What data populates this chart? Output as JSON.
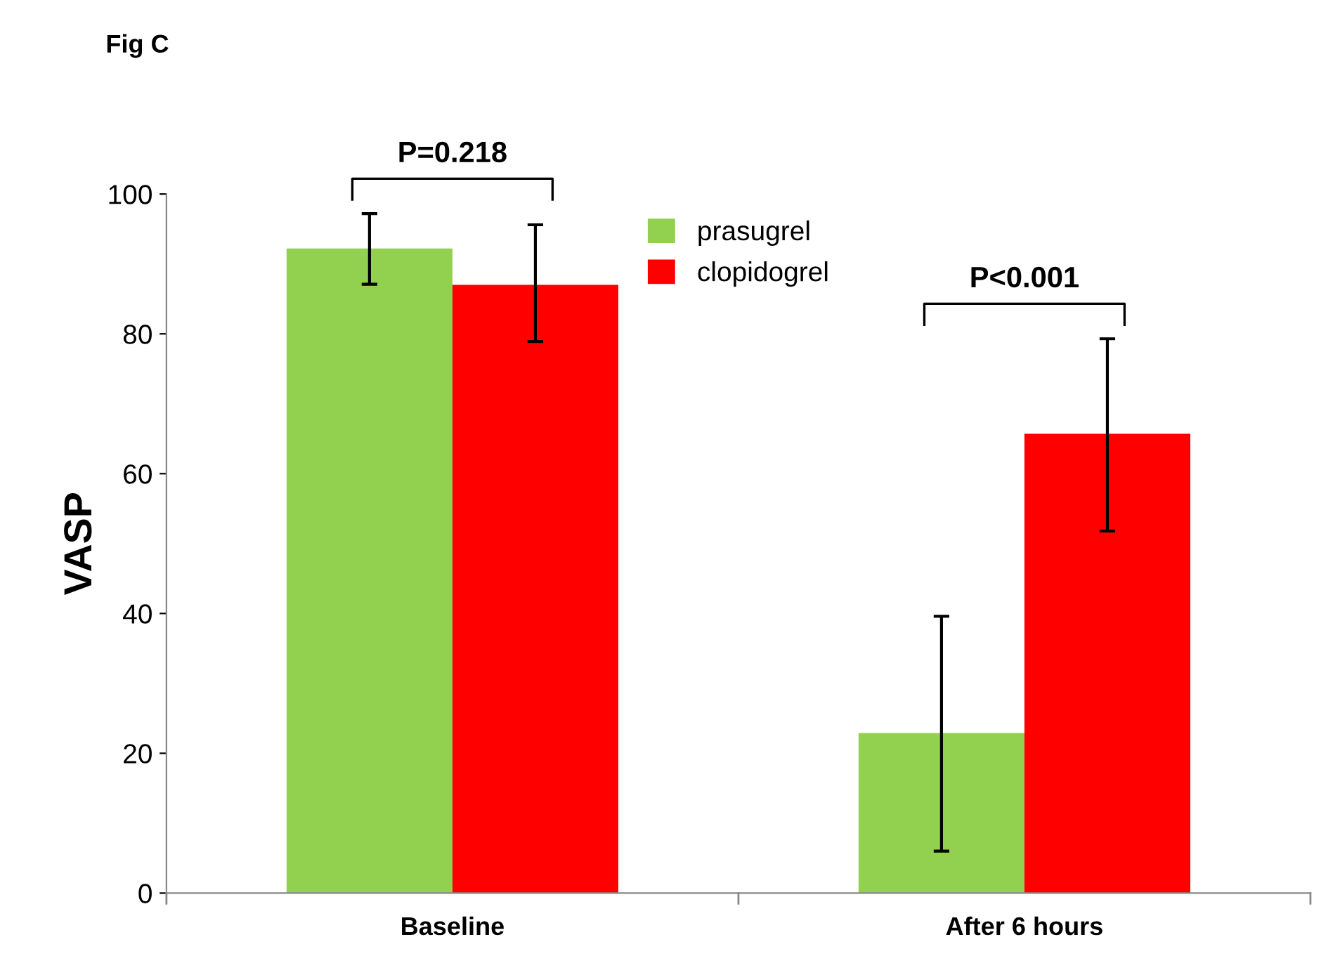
{
  "chart_data": {
    "type": "bar",
    "title": "Fig C",
    "ylabel": "VASP",
    "categories": [
      "Baseline",
      "After 6 hours"
    ],
    "series": [
      {
        "name": "prasugrel",
        "color": "#92d050",
        "values": [
          92.2,
          22.9
        ],
        "errors": [
          [
            87.1,
            97.2
          ],
          [
            6.0,
            39.6
          ]
        ]
      },
      {
        "name": "clopidogrel",
        "color": "#ff0000",
        "values": [
          87.0,
          65.7
        ],
        "errors": [
          [
            78.9,
            95.6
          ],
          [
            51.8,
            79.3
          ]
        ]
      }
    ],
    "ylim": [
      0,
      100
    ],
    "yticks": [
      0,
      20,
      40,
      60,
      80,
      100
    ],
    "grid": false,
    "legend": "top",
    "annotations": [
      "P=0.218",
      "P<0.001"
    ]
  }
}
